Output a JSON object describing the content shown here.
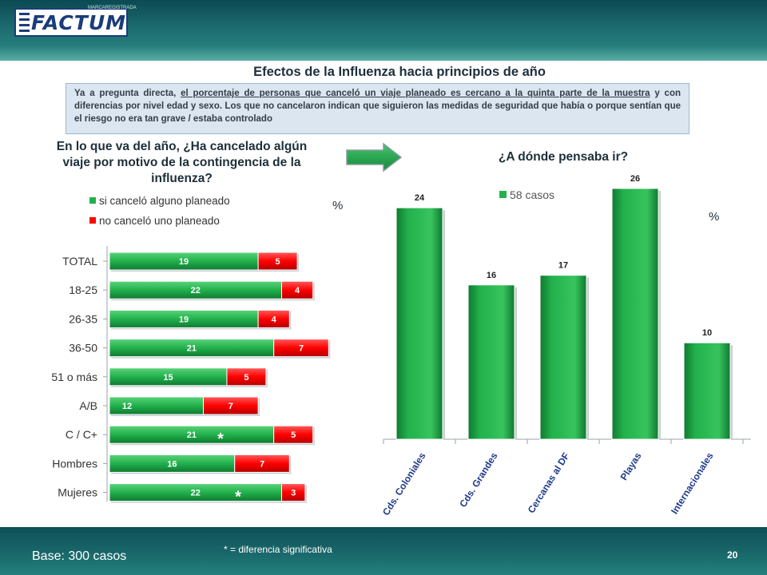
{
  "header": {
    "logo_text": "FACTUM",
    "logo_subtext": "MARCAREGISTRADA"
  },
  "title": "Efectos de la Influenza hacia principios de año",
  "info": {
    "part1": "Ya a pregunta directa, ",
    "underlined": "el porcentaje de personas que canceló un viaje planeado es cercano a la quinta parte de la muestra",
    "part2": " y con diferencias por nivel edad y sexo. Los que no cancelaron indican que siguieron las medidas de seguridad que había o porque sentían que el riesgo no era tan grave / estaba controlado"
  },
  "left_question": "En lo que va del año, ¿Ha cancelado algún viaje por motivo de la contingencia de la influenza?",
  "right_question": "¿A dónde pensaba ir?",
  "pct_symbol": "%",
  "colors": {
    "green": "#22b14c",
    "green_dark": "#0f7a30",
    "red": "#ff0000",
    "red_dark": "#b30000"
  },
  "chart_data": [
    {
      "type": "bar",
      "orientation": "horizontal-stacked",
      "categories": [
        "TOTAL",
        "18-25",
        "26-35",
        "36-50",
        "51 o más",
        "A/B",
        "C / C+",
        "Hombres",
        "Mujeres"
      ],
      "series": [
        {
          "name": "si canceló alguno planeado",
          "values": [
            19,
            22,
            19,
            21,
            15,
            12,
            21,
            16,
            22
          ],
          "color": "#22b14c"
        },
        {
          "name": "no canceló uno planeado",
          "values": [
            5,
            4,
            4,
            7,
            5,
            7,
            5,
            7,
            3
          ],
          "color": "#ff0000"
        }
      ],
      "significance_marks": [
        {
          "category": "C / C+",
          "label": "*"
        },
        {
          "category": "Mujeres",
          "label": "*"
        }
      ],
      "legend_position": "top-right"
    },
    {
      "type": "bar",
      "categories": [
        "Cds. Coloniales",
        "Cds. Grandes",
        "Cercanas al DF",
        "Playas",
        "Internacionales"
      ],
      "series": [
        {
          "name": "58 casos",
          "values": [
            24,
            16,
            17,
            26,
            10
          ],
          "color": "#22b14c"
        }
      ],
      "ylim": [
        0,
        26
      ],
      "legend_position": "top"
    }
  ],
  "footer": {
    "base": "Base: 300 casos",
    "note": "* = diferencia significativa",
    "page": "20"
  }
}
